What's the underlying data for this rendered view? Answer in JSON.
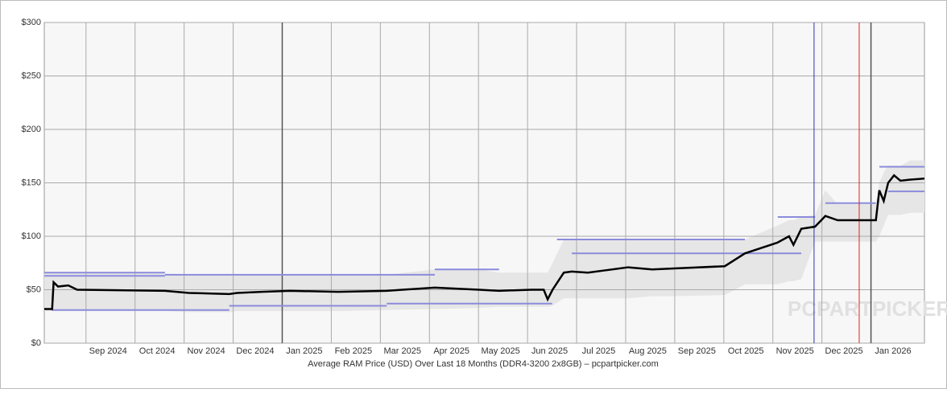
{
  "chart_data": {
    "type": "line",
    "caption": "Average RAM Price (USD) Over Last 18 Months (DDR4-3200 2x8GB) – pcpartpicker.com",
    "watermark": "PCPARTPICKER",
    "xlim": [
      -0.85,
      17.09
    ],
    "xticks": [
      {
        "value": 0,
        "label": "Sep 2024"
      },
      {
        "value": 1,
        "label": "Oct 2024"
      },
      {
        "value": 2,
        "label": "Nov 2024"
      },
      {
        "value": 3,
        "label": "Dec 2024"
      },
      {
        "value": 4,
        "label": "Jan 2025"
      },
      {
        "value": 5,
        "label": "Feb 2025"
      },
      {
        "value": 6,
        "label": "Mar 2025"
      },
      {
        "value": 7,
        "label": "Apr 2025"
      },
      {
        "value": 8,
        "label": "May 2025"
      },
      {
        "value": 9,
        "label": "Jun 2025"
      },
      {
        "value": 10,
        "label": "Jul 2025"
      },
      {
        "value": 11,
        "label": "Aug 2025"
      },
      {
        "value": 12,
        "label": "Sep 2025"
      },
      {
        "value": 13,
        "label": "Oct 2025"
      },
      {
        "value": 14,
        "label": "Nov 2025"
      },
      {
        "value": 15,
        "label": "Dec 2025"
      },
      {
        "value": 16,
        "label": "Jan 2026"
      }
    ],
    "year_ticks": [
      4,
      16
    ],
    "ylim": [
      0,
      300
    ],
    "yticks": [
      {
        "value": 0,
        "label": "$0"
      },
      {
        "value": 50,
        "label": "$50"
      },
      {
        "value": 100,
        "label": "$100"
      },
      {
        "value": 150,
        "label": "$150"
      },
      {
        "value": 200,
        "label": "$200"
      },
      {
        "value": 250,
        "label": "$250"
      },
      {
        "value": 300,
        "label": "$300"
      }
    ],
    "grid": true,
    "x": [
      -0.85,
      -0.69,
      -0.66,
      -0.57,
      -0.36,
      -0.18,
      1.61,
      2.1,
      2.92,
      3.08,
      3.58,
      4.15,
      5.14,
      6.13,
      7.11,
      8.01,
      8.42,
      9.08,
      9.33,
      9.41,
      9.51,
      9.74,
      9.9,
      10.23,
      10.56,
      11.05,
      11.54,
      12.04,
      13.02,
      13.43,
      14.09,
      14.33,
      14.42,
      14.58,
      14.86,
      15.07,
      15.32,
      16.1,
      16.17,
      16.26,
      16.35,
      16.47,
      16.6,
      16.8,
      17.09
    ],
    "series": [
      {
        "color": "#000000",
        "values": [
          32,
          32,
          57,
          53,
          54,
          50,
          49,
          47,
          46,
          47,
          48,
          49,
          48,
          49,
          52,
          50,
          49,
          50,
          50,
          41,
          50,
          66,
          67,
          66,
          68,
          71,
          69,
          70,
          72,
          84,
          94,
          100,
          92,
          107,
          109,
          119,
          115,
          115,
          143,
          133,
          150,
          157,
          152,
          153,
          154
        ]
      }
    ],
    "band_color": "#e6e6e6",
    "band_low": [
      30,
      30,
      30,
      30,
      30,
      30,
      30,
      29,
      29,
      30,
      30,
      30,
      30,
      31,
      32,
      33,
      34,
      34,
      34,
      34,
      35,
      42,
      42,
      42,
      42,
      42,
      44,
      44,
      45,
      55,
      55,
      58,
      58,
      60,
      95,
      95,
      95,
      95,
      100,
      110,
      120,
      120,
      120,
      122,
      122
    ],
    "band_high": [
      66,
      66,
      66,
      66,
      66,
      66,
      65,
      64,
      64,
      64,
      64,
      64,
      64,
      64,
      69,
      69,
      66,
      66,
      66,
      66,
      75,
      97,
      97,
      97,
      97,
      97,
      97,
      97,
      97,
      97,
      110,
      115,
      115,
      118,
      120,
      143,
      130,
      130,
      150,
      160,
      166,
      166,
      166,
      171,
      171
    ],
    "product_color": "#8b8bdc",
    "products": {
      "x_start": [
        -0.85,
        -0.85,
        1.61,
        4.15,
        7.11,
        9.6,
        9.9,
        -0.7,
        2.92,
        6.13,
        13.43,
        14.1,
        15.07,
        16.17,
        16.35
      ],
      "x_end": [
        1.61,
        1.61,
        4.15,
        7.11,
        8.42,
        13.43,
        13.43,
        2.92,
        6.13,
        9.5,
        14.58,
        14.86,
        16.1,
        17.09,
        17.09
      ],
      "values": [
        66,
        63,
        64,
        64,
        69,
        97,
        84,
        31,
        35,
        37,
        84,
        118,
        131,
        165,
        142
      ]
    },
    "vlines": [
      {
        "x": 14.84,
        "color": "#3333aa"
      },
      {
        "x": 15.76,
        "color": "#dd2222"
      }
    ]
  }
}
